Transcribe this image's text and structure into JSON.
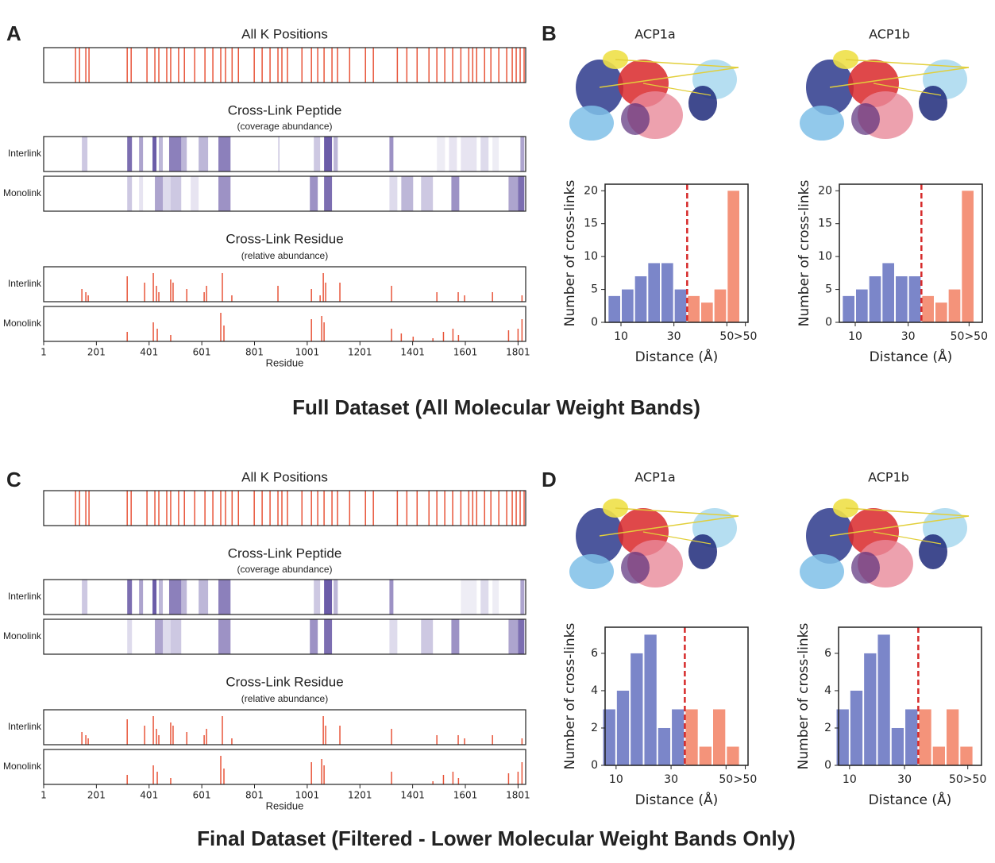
{
  "sections": [
    {
      "title": "Full Dataset (All Molecular Weight Bands)",
      "letters": [
        "A",
        "B"
      ]
    },
    {
      "title": "Final Dataset (Filtered - Lower Molecular Weight Bands Only)",
      "letters": [
        "C",
        "D"
      ]
    }
  ],
  "chart_data": [
    {
      "type": "tracks",
      "k_title": "All K Positions",
      "peptide_title": "Cross-Link Peptide",
      "peptide_subtitle": "(coverage abundance)",
      "residue_title": "Cross-Link Residue",
      "residue_subtitle": "(relative abundance)",
      "xlabel": "Residue",
      "xlim": [
        1,
        1830
      ],
      "xticks": [
        1,
        201,
        401,
        601,
        801,
        1001,
        1201,
        1401,
        1601,
        1801
      ],
      "k_color": "#e8553a",
      "peptide_color": "#5b4a9e",
      "residue_color": "#e8553a",
      "k_positions": [
        122,
        137,
        161,
        173,
        318,
        333,
        393,
        423,
        438,
        468,
        483,
        513,
        535,
        574,
        613,
        643,
        673,
        691,
        716,
        740,
        800,
        830,
        860,
        890,
        905,
        926,
        981,
        1017,
        1041,
        1065,
        1095,
        1116,
        1162,
        1222,
        1252,
        1343,
        1379,
        1418,
        1463,
        1493,
        1523,
        1553,
        1584,
        1614,
        1629,
        1644,
        1674,
        1698,
        1728,
        1758,
        1779,
        1794,
        1809,
        1824
      ],
      "series": [
        {
          "name": "Interlink",
          "peptide": [
            [
              146,
              167,
              0.3
            ],
            [
              318,
              336,
              0.8
            ],
            [
              363,
              378,
              0.5
            ],
            [
              414,
              429,
              0.9
            ],
            [
              438,
              453,
              0.4
            ],
            [
              477,
              523,
              0.7
            ],
            [
              523,
              544,
              0.4
            ],
            [
              589,
              625,
              0.4
            ],
            [
              664,
              710,
              0.7
            ],
            [
              891,
              896,
              0.3
            ],
            [
              1026,
              1050,
              0.3
            ],
            [
              1065,
              1095,
              0.9
            ],
            [
              1101,
              1117,
              0.4
            ],
            [
              1313,
              1328,
              0.6
            ],
            [
              1493,
              1524,
              0.1
            ],
            [
              1539,
              1569,
              0.15
            ],
            [
              1584,
              1644,
              0.15
            ],
            [
              1659,
              1689,
              0.2
            ],
            [
              1704,
              1728,
              0.1
            ],
            [
              1810,
              1825,
              0.5
            ]
          ],
          "residue": [
            [
              146,
              0.4
            ],
            [
              161,
              0.3
            ],
            [
              170,
              0.2
            ],
            [
              318,
              0.8
            ],
            [
              384,
              0.6
            ],
            [
              417,
              0.9
            ],
            [
              429,
              0.5
            ],
            [
              438,
              0.3
            ],
            [
              483,
              0.7
            ],
            [
              492,
              0.6
            ],
            [
              544,
              0.4
            ],
            [
              610,
              0.3
            ],
            [
              619,
              0.5
            ],
            [
              679,
              0.9
            ],
            [
              715,
              0.2
            ],
            [
              890,
              0.5
            ],
            [
              1017,
              0.4
            ],
            [
              1050,
              0.2
            ],
            [
              1062,
              0.9
            ],
            [
              1071,
              0.6
            ],
            [
              1125,
              0.6
            ],
            [
              1321,
              0.5
            ],
            [
              1493,
              0.3
            ],
            [
              1574,
              0.3
            ],
            [
              1598,
              0.2
            ],
            [
              1704,
              0.3
            ],
            [
              1816,
              0.2
            ]
          ]
        },
        {
          "name": "Monolink",
          "peptide": [
            [
              318,
              336,
              0.3
            ],
            [
              363,
              378,
              0.15
            ],
            [
              423,
              453,
              0.5
            ],
            [
              453,
              483,
              0.2
            ],
            [
              483,
              523,
              0.3
            ],
            [
              559,
              589,
              0.15
            ],
            [
              664,
              710,
              0.6
            ],
            [
              1011,
              1041,
              0.6
            ],
            [
              1065,
              1095,
              0.8
            ],
            [
              1313,
              1343,
              0.2
            ],
            [
              1358,
              1403,
              0.4
            ],
            [
              1433,
              1478,
              0.3
            ],
            [
              1548,
              1578,
              0.6
            ],
            [
              1765,
              1801,
              0.5
            ],
            [
              1801,
              1825,
              0.8
            ]
          ],
          "residue": [
            [
              318,
              0.3
            ],
            [
              417,
              0.6
            ],
            [
              432,
              0.4
            ],
            [
              483,
              0.2
            ],
            [
              673,
              0.9
            ],
            [
              685,
              0.5
            ],
            [
              1017,
              0.7
            ],
            [
              1056,
              0.8
            ],
            [
              1065,
              0.6
            ],
            [
              1321,
              0.4
            ],
            [
              1358,
              0.25
            ],
            [
              1403,
              0.15
            ],
            [
              1478,
              0.1
            ],
            [
              1518,
              0.3
            ],
            [
              1554,
              0.4
            ],
            [
              1575,
              0.2
            ],
            [
              1765,
              0.35
            ],
            [
              1801,
              0.4
            ],
            [
              1816,
              0.7
            ]
          ]
        }
      ]
    },
    {
      "type": "histogram",
      "title": "ACP1a",
      "xlabel": "Distance (Å)",
      "ylabel": "Number of cross-links",
      "bins": [
        5,
        10,
        15,
        20,
        25,
        30,
        35,
        40,
        45,
        50,
        55
      ],
      "values": [
        4,
        5,
        7,
        9,
        9,
        5,
        4,
        3,
        5,
        20
      ],
      "color": "#7b86c9",
      "threshold": 35,
      "above_color": "#f4937a",
      "threshold_color": "#d62a2a",
      "xlim": [
        4,
        58
      ],
      "ylim": [
        0,
        21
      ],
      "xticks": [
        10,
        30,
        50,
        {
          "value": 57,
          "label": ">50"
        }
      ],
      "yticks": [
        0,
        5,
        10,
        15,
        20
      ]
    },
    {
      "type": "histogram",
      "title": "ACP1b",
      "xlabel": "Distance (Å)",
      "ylabel": "Number of cross-links",
      "bins": [
        5,
        10,
        15,
        20,
        25,
        30,
        35,
        40,
        45,
        50,
        55
      ],
      "values": [
        4,
        5,
        7,
        9,
        7,
        7,
        4,
        3,
        5,
        20
      ],
      "color": "#7b86c9",
      "threshold": 35,
      "above_color": "#f4937a",
      "threshold_color": "#d62a2a",
      "xlim": [
        4,
        58
      ],
      "ylim": [
        0,
        21
      ],
      "xticks": [
        10,
        30,
        {
          "value": 53,
          "label": "50>50"
        }
      ],
      "yticks": [
        0,
        5,
        10,
        15,
        20
      ]
    },
    {
      "type": "tracks",
      "k_title": "All K Positions",
      "peptide_title": "Cross-Link Peptide",
      "peptide_subtitle": "(coverage abundance)",
      "residue_title": "Cross-Link Residue",
      "residue_subtitle": "(relative abundance)",
      "xlabel": "Residue",
      "xlim": [
        1,
        1830
      ],
      "xticks": [
        1,
        201,
        401,
        601,
        801,
        1001,
        1201,
        1401,
        1601,
        1801
      ],
      "k_color": "#e8553a",
      "peptide_color": "#5b4a9e",
      "residue_color": "#e8553a",
      "k_positions": [
        122,
        137,
        161,
        173,
        318,
        333,
        393,
        423,
        438,
        468,
        483,
        513,
        535,
        574,
        613,
        643,
        673,
        691,
        716,
        740,
        800,
        830,
        860,
        890,
        905,
        926,
        981,
        1017,
        1041,
        1065,
        1095,
        1116,
        1162,
        1222,
        1252,
        1343,
        1379,
        1418,
        1463,
        1493,
        1523,
        1553,
        1584,
        1614,
        1629,
        1644,
        1674,
        1698,
        1728,
        1758,
        1779,
        1794,
        1809,
        1824
      ],
      "series": [
        {
          "name": "Interlink",
          "peptide": [
            [
              146,
              167,
              0.3
            ],
            [
              318,
              336,
              0.8
            ],
            [
              363,
              378,
              0.5
            ],
            [
              414,
              429,
              0.9
            ],
            [
              438,
              453,
              0.4
            ],
            [
              477,
              523,
              0.7
            ],
            [
              523,
              544,
              0.4
            ],
            [
              589,
              625,
              0.4
            ],
            [
              664,
              710,
              0.7
            ],
            [
              1026,
              1050,
              0.3
            ],
            [
              1065,
              1095,
              0.9
            ],
            [
              1101,
              1117,
              0.4
            ],
            [
              1313,
              1328,
              0.6
            ],
            [
              1584,
              1644,
              0.1
            ],
            [
              1659,
              1689,
              0.2
            ],
            [
              1704,
              1728,
              0.1
            ],
            [
              1810,
              1825,
              0.5
            ]
          ],
          "residue": [
            [
              146,
              0.4
            ],
            [
              161,
              0.3
            ],
            [
              170,
              0.2
            ],
            [
              318,
              0.8
            ],
            [
              384,
              0.6
            ],
            [
              417,
              0.9
            ],
            [
              429,
              0.5
            ],
            [
              438,
              0.3
            ],
            [
              483,
              0.7
            ],
            [
              492,
              0.6
            ],
            [
              544,
              0.4
            ],
            [
              610,
              0.3
            ],
            [
              619,
              0.5
            ],
            [
              679,
              0.9
            ],
            [
              715,
              0.2
            ],
            [
              1062,
              0.9
            ],
            [
              1071,
              0.6
            ],
            [
              1125,
              0.6
            ],
            [
              1321,
              0.5
            ],
            [
              1493,
              0.3
            ],
            [
              1574,
              0.3
            ],
            [
              1598,
              0.2
            ],
            [
              1704,
              0.3
            ],
            [
              1816,
              0.2
            ]
          ]
        },
        {
          "name": "Monolink",
          "peptide": [
            [
              318,
              336,
              0.2
            ],
            [
              423,
              453,
              0.5
            ],
            [
              453,
              483,
              0.2
            ],
            [
              483,
              523,
              0.3
            ],
            [
              664,
              710,
              0.6
            ],
            [
              1011,
              1041,
              0.6
            ],
            [
              1065,
              1095,
              0.8
            ],
            [
              1313,
              1343,
              0.2
            ],
            [
              1433,
              1478,
              0.3
            ],
            [
              1548,
              1578,
              0.6
            ],
            [
              1765,
              1801,
              0.5
            ],
            [
              1801,
              1825,
              0.8
            ]
          ],
          "residue": [
            [
              318,
              0.3
            ],
            [
              417,
              0.6
            ],
            [
              432,
              0.4
            ],
            [
              483,
              0.2
            ],
            [
              673,
              0.9
            ],
            [
              685,
              0.5
            ],
            [
              1017,
              0.7
            ],
            [
              1056,
              0.8
            ],
            [
              1065,
              0.6
            ],
            [
              1321,
              0.4
            ],
            [
              1478,
              0.1
            ],
            [
              1518,
              0.3
            ],
            [
              1554,
              0.4
            ],
            [
              1575,
              0.2
            ],
            [
              1765,
              0.35
            ],
            [
              1801,
              0.4
            ],
            [
              1816,
              0.7
            ]
          ]
        }
      ]
    },
    {
      "type": "histogram",
      "title": "ACP1a",
      "xlabel": "Distance (Å)",
      "ylabel": "Number of cross-links",
      "bins": [
        5,
        10,
        15,
        20,
        25,
        30,
        35,
        40,
        45,
        50,
        55
      ],
      "values": [
        3,
        4,
        6,
        7,
        2,
        3,
        3,
        1,
        3,
        1
      ],
      "color": "#7b86c9",
      "threshold": 35,
      "above_color": "#f4937a",
      "threshold_color": "#d62a2a",
      "xlim": [
        6,
        58
      ],
      "ylim": [
        0,
        7.4
      ],
      "xticks": [
        10,
        30,
        50,
        {
          "value": 57,
          "label": ">50"
        }
      ],
      "yticks": [
        0,
        2,
        4,
        6
      ]
    },
    {
      "type": "histogram",
      "title": "ACP1b",
      "xlabel": "Distance (Å)",
      "ylabel": "Number of cross-links",
      "bins": [
        5,
        10,
        15,
        20,
        25,
        30,
        35,
        40,
        45,
        50,
        55
      ],
      "values": [
        3,
        4,
        6,
        7,
        2,
        3,
        3,
        1,
        3,
        1
      ],
      "color": "#7b86c9",
      "threshold": 35,
      "above_color": "#f4937a",
      "threshold_color": "#d62a2a",
      "xlim": [
        6,
        58
      ],
      "ylim": [
        0,
        7.4
      ],
      "xticks": [
        10,
        30,
        {
          "value": 53,
          "label": "50>50"
        }
      ],
      "yticks": [
        0,
        2,
        4,
        6
      ]
    }
  ]
}
